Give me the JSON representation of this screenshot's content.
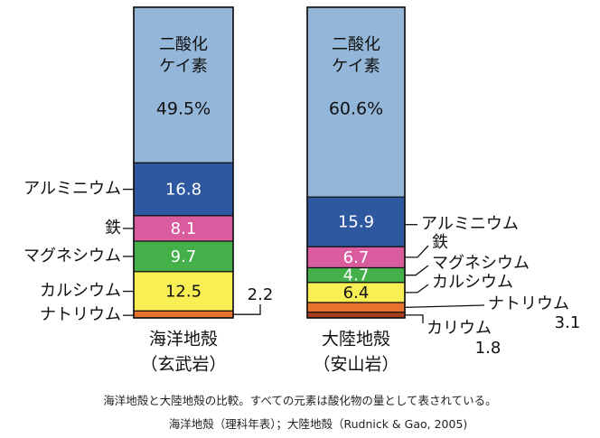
{
  "chart_data": {
    "type": "stacked-bar",
    "columns": [
      {
        "name": "海洋地殻",
        "sub": "（玄武岩）",
        "segments": [
          {
            "component": "二酸化ケイ素",
            "label_lines": [
              "二酸化",
              "ケイ素"
            ],
            "value": 49.5,
            "value_label": "49.5%",
            "color": "#94b6d8"
          },
          {
            "component": "アルミニウム",
            "value": 16.8,
            "value_label": "16.8",
            "color": "#2e58a0"
          },
          {
            "component": "鉄",
            "value": 8.1,
            "value_label": "8.1",
            "color": "#d85c9e"
          },
          {
            "component": "マグネシウム",
            "value": 9.7,
            "value_label": "9.7",
            "color": "#44b04a"
          },
          {
            "component": "カルシウム",
            "value": 12.5,
            "value_label": "12.5",
            "color": "#f8ef55"
          },
          {
            "component": "ナトリウム",
            "value": 2.2,
            "value_label": "2.2",
            "color": "#e8732e"
          }
        ]
      },
      {
        "name": "大陸地殻",
        "sub": "（安山岩）",
        "segments": [
          {
            "component": "二酸化ケイ素",
            "label_lines": [
              "二酸化",
              "ケイ素"
            ],
            "value": 60.6,
            "value_label": "60.6%",
            "color": "#94b6d8"
          },
          {
            "component": "アルミニウム",
            "value": 15.9,
            "value_label": "15.9",
            "color": "#2e58a0"
          },
          {
            "component": "鉄",
            "value": 6.7,
            "value_label": "6.7",
            "color": "#d85c9e"
          },
          {
            "component": "マグネシウム",
            "value": 4.7,
            "value_label": "4.7",
            "color": "#44b04a"
          },
          {
            "component": "カルシウム",
            "value": 6.4,
            "value_label": "6.4",
            "color": "#f8ef55"
          },
          {
            "component": "ナトリウム",
            "value": 3.1,
            "value_label": "3.1",
            "color": "#e8732e"
          },
          {
            "component": "カリウム",
            "value": 1.8,
            "value_label": "1.8",
            "color": "#a83c1c"
          }
        ]
      }
    ]
  },
  "caption": "海洋地殻と大陸地殻の比較。すべての元素は酸化物の量として表されている。",
  "source": "海洋地殻（理科年表）；大陸地殻（Rudnick & Gao, 2005)"
}
